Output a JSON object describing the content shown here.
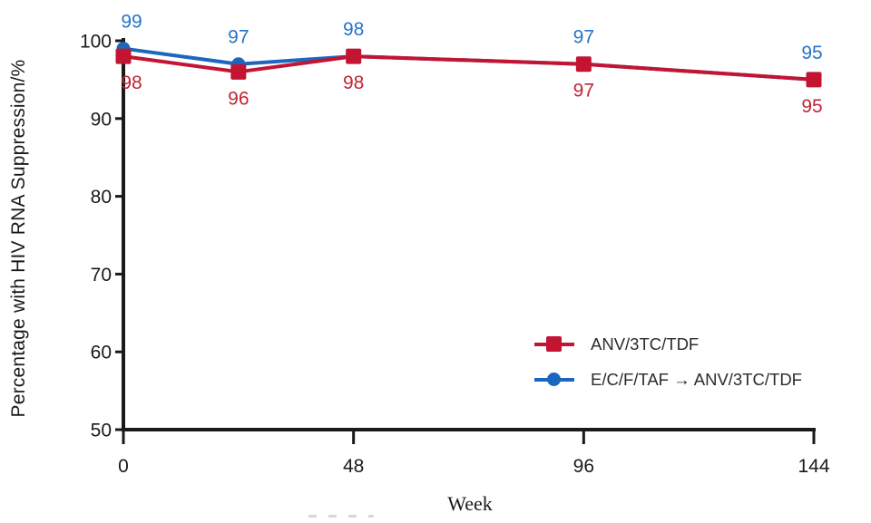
{
  "chart_data": {
    "type": "line",
    "title": "",
    "xlabel": "Week",
    "ylabel": "Percentage with HIV RNA Suppression/%",
    "x": [
      0,
      24,
      48,
      96,
      144
    ],
    "x_ticks": [
      0,
      48,
      96,
      144
    ],
    "y_ticks": [
      50,
      60,
      70,
      80,
      90,
      100
    ],
    "xlim": [
      0,
      144
    ],
    "ylim": [
      50,
      100
    ],
    "grid": false,
    "legend_position": "lower-right",
    "axis_color": "#1a1a1a",
    "series": [
      {
        "name": "E/C/F/TAF → ANV/3TC/TDF",
        "marker": "circle",
        "color": "#1C67BE",
        "label_color": "#2574CB",
        "values": [
          99,
          97,
          98,
          97,
          95
        ],
        "value_label_position": "above"
      },
      {
        "name": "ANV/3TC/TDF",
        "marker": "square",
        "color": "#C31432",
        "label_color": "#C22433",
        "values": [
          98,
          96,
          98,
          97,
          95
        ],
        "value_label_position": "below"
      }
    ]
  }
}
